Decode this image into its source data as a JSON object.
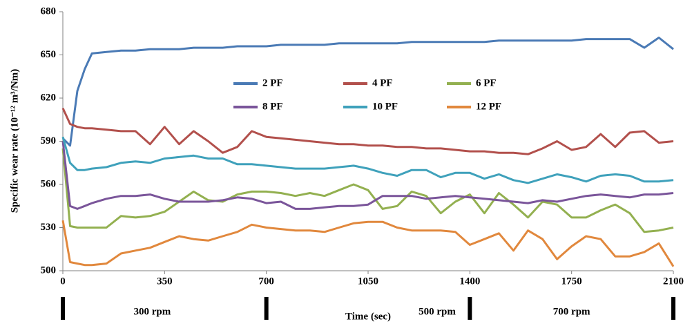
{
  "chart_data": {
    "type": "line",
    "y_label": "Specific wear rate (10⁻¹² m³/Nm)",
    "x_label": "Time (sec)",
    "x": [
      0,
      25,
      50,
      75,
      100,
      150,
      200,
      250,
      300,
      350,
      400,
      450,
      500,
      550,
      600,
      650,
      700,
      750,
      800,
      850,
      900,
      950,
      1000,
      1050,
      1100,
      1150,
      1200,
      1250,
      1300,
      1350,
      1400,
      1450,
      1500,
      1550,
      1600,
      1650,
      1700,
      1750,
      1800,
      1850,
      1900,
      1950,
      2000,
      2050,
      2100
    ],
    "series": [
      {
        "name": "2 PF",
        "color": "#4a7ab5",
        "values": [
          592,
          587,
          625,
          640,
          651,
          652,
          653,
          653,
          654,
          654,
          654,
          655,
          655,
          655,
          656,
          656,
          656,
          657,
          657,
          657,
          657,
          658,
          658,
          658,
          658,
          658,
          659,
          659,
          659,
          659,
          659,
          659,
          660,
          660,
          660,
          660,
          660,
          660,
          661,
          661,
          661,
          661,
          655,
          662,
          654
        ]
      },
      {
        "name": "4 PF",
        "color": "#b2504c",
        "values": [
          613,
          602,
          600,
          599,
          599,
          598,
          597,
          597,
          588,
          600,
          588,
          597,
          590,
          582,
          586,
          597,
          593,
          592,
          591,
          590,
          589,
          588,
          588,
          587,
          587,
          586,
          586,
          585,
          585,
          584,
          583,
          583,
          582,
          582,
          581,
          585,
          590,
          584,
          586,
          595,
          586,
          596,
          597,
          589,
          590
        ]
      },
      {
        "name": "6 PF",
        "color": "#93b050",
        "values": [
          585,
          531,
          530,
          530,
          530,
          530,
          538,
          537,
          538,
          541,
          548,
          555,
          549,
          548,
          553,
          555,
          555,
          554,
          552,
          554,
          552,
          556,
          560,
          556,
          543,
          545,
          555,
          552,
          540,
          548,
          553,
          540,
          554,
          546,
          537,
          548,
          546,
          537,
          537,
          542,
          546,
          540,
          527,
          528,
          530
        ]
      },
      {
        "name": "8 PF",
        "color": "#7a559a",
        "values": [
          590,
          545,
          543,
          545,
          547,
          550,
          552,
          552,
          553,
          550,
          548,
          548,
          548,
          549,
          551,
          550,
          547,
          548,
          543,
          543,
          544,
          545,
          545,
          546,
          552,
          552,
          552,
          550,
          551,
          552,
          551,
          550,
          549,
          548,
          547,
          549,
          548,
          550,
          552,
          553,
          552,
          551,
          553,
          553,
          554
        ]
      },
      {
        "name": "10 PF",
        "color": "#3fa1bb",
        "values": [
          593,
          575,
          570,
          570,
          571,
          572,
          575,
          576,
          575,
          578,
          579,
          580,
          578,
          578,
          574,
          574,
          573,
          572,
          571,
          571,
          571,
          572,
          573,
          571,
          568,
          566,
          570,
          570,
          565,
          568,
          568,
          564,
          567,
          563,
          561,
          564,
          567,
          565,
          562,
          566,
          567,
          566,
          562,
          562,
          563
        ]
      },
      {
        "name": "12 PF",
        "color": "#e1883d",
        "values": [
          535,
          506,
          505,
          504,
          504,
          505,
          512,
          514,
          516,
          520,
          524,
          522,
          521,
          524,
          527,
          532,
          530,
          529,
          528,
          528,
          527,
          530,
          533,
          534,
          534,
          530,
          528,
          528,
          528,
          527,
          518,
          522,
          526,
          514,
          528,
          522,
          508,
          517,
          524,
          522,
          510,
          510,
          513,
          519,
          503
        ]
      }
    ],
    "xlim": [
      0,
      2100
    ],
    "xticks": [
      0,
      350,
      700,
      1050,
      1400,
      1750,
      2100
    ],
    "ylim": [
      500,
      680
    ],
    "yticks": [
      500,
      530,
      560,
      590,
      620,
      650,
      680
    ],
    "grid": false,
    "segments": [
      {
        "label": "300 rpm",
        "start": 0,
        "end": 700
      },
      {
        "label": "500 rpm",
        "start": 700,
        "end": 1400
      },
      {
        "label": "700 rpm",
        "start": 1400,
        "end": 2100
      }
    ]
  }
}
